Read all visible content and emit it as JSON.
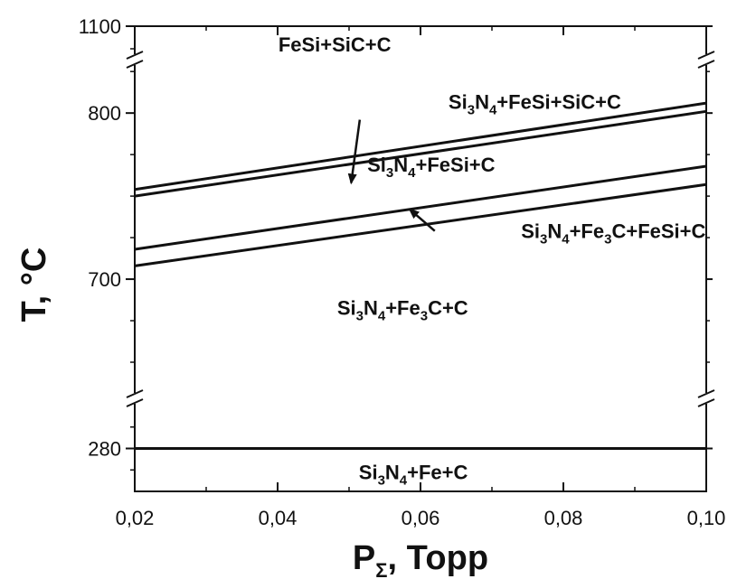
{
  "chart_data": {
    "type": "line",
    "xlabel": {
      "main": "P",
      "sub": "Σ",
      "rest": ", Торр"
    },
    "ylabel": "T, °C",
    "xlim": [
      0.02,
      0.1
    ],
    "x_ticks": [
      {
        "value": 0.02,
        "label": "0,02"
      },
      {
        "value": 0.04,
        "label": "0,04"
      },
      {
        "value": 0.06,
        "label": "0,06"
      },
      {
        "value": 0.08,
        "label": "0,08"
      },
      {
        "value": 0.1,
        "label": "0,10"
      }
    ],
    "y_segments": [
      {
        "name": "top",
        "range": [
          1000,
          1100
        ],
        "ticks": [
          {
            "value": 1100,
            "label": "1100"
          }
        ]
      },
      {
        "name": "middle",
        "range": [
          650,
          830
        ],
        "ticks": [
          {
            "value": 800,
            "label": "800"
          },
          {
            "value": 700,
            "label": "700"
          }
        ]
      },
      {
        "name": "bottom",
        "range": [
          260,
          300
        ],
        "ticks": [
          {
            "value": 280,
            "label": "280"
          }
        ]
      }
    ],
    "axis_breaks": [
      {
        "between": [
          "top",
          "middle"
        ]
      },
      {
        "between": [
          "middle",
          "bottom"
        ]
      }
    ],
    "series": [
      {
        "segment": "middle",
        "x": [
          0.02,
          0.1
        ],
        "y": [
          754,
          806
        ]
      },
      {
        "segment": "middle",
        "x": [
          0.02,
          0.1
        ],
        "y": [
          750,
          801
        ]
      },
      {
        "segment": "middle",
        "x": [
          0.02,
          0.1
        ],
        "y": [
          718,
          768
        ]
      },
      {
        "segment": "middle",
        "x": [
          0.02,
          0.1
        ],
        "y": [
          708,
          757
        ]
      },
      {
        "segment": "bottom",
        "x": [
          0.02,
          0.1
        ],
        "y": [
          280,
          280
        ]
      }
    ],
    "regions": [
      {
        "segment": "top",
        "x": 0.048,
        "y": 1060,
        "parts": [
          {
            "t": "FeSi+SiC+C"
          }
        ]
      },
      {
        "segment": "middle",
        "x": 0.076,
        "y": 807,
        "parts": [
          {
            "t": "Si"
          },
          {
            "t": "3",
            "sub": true
          },
          {
            "t": "N"
          },
          {
            "t": "4",
            "sub": true
          },
          {
            "t": "+FeSi+SiC+C"
          }
        ]
      },
      {
        "segment": "middle",
        "x": 0.0615,
        "y": 769,
        "parts": [
          {
            "t": "Si"
          },
          {
            "t": "3",
            "sub": true
          },
          {
            "t": "N"
          },
          {
            "t": "4",
            "sub": true
          },
          {
            "t": "+FeSi+C"
          }
        ]
      },
      {
        "segment": "middle",
        "x": 0.087,
        "y": 729,
        "parts": [
          {
            "t": "Si"
          },
          {
            "t": "3",
            "sub": true
          },
          {
            "t": "N"
          },
          {
            "t": "4",
            "sub": true
          },
          {
            "t": "+Fe"
          },
          {
            "t": "3",
            "sub": true
          },
          {
            "t": "C+FeSi+C"
          }
        ]
      },
      {
        "segment": "middle",
        "x": 0.0575,
        "y": 683,
        "parts": [
          {
            "t": "Si"
          },
          {
            "t": "3",
            "sub": true
          },
          {
            "t": "N"
          },
          {
            "t": "4",
            "sub": true
          },
          {
            "t": "+Fe"
          },
          {
            "t": "3",
            "sub": true
          },
          {
            "t": "C+C"
          }
        ]
      },
      {
        "segment": "bottom",
        "x": 0.059,
        "y": 269,
        "parts": [
          {
            "t": "Si"
          },
          {
            "t": "3",
            "sub": true
          },
          {
            "t": "N"
          },
          {
            "t": "4",
            "sub": true
          },
          {
            "t": "+Fe+C"
          }
        ]
      }
    ],
    "arrows": [
      {
        "segment": "middle",
        "from": [
          0.0515,
          796
        ],
        "to": [
          0.0503,
          758
        ]
      },
      {
        "segment": "middle",
        "from": [
          0.062,
          729
        ],
        "to": [
          0.0585,
          742
        ]
      }
    ]
  }
}
